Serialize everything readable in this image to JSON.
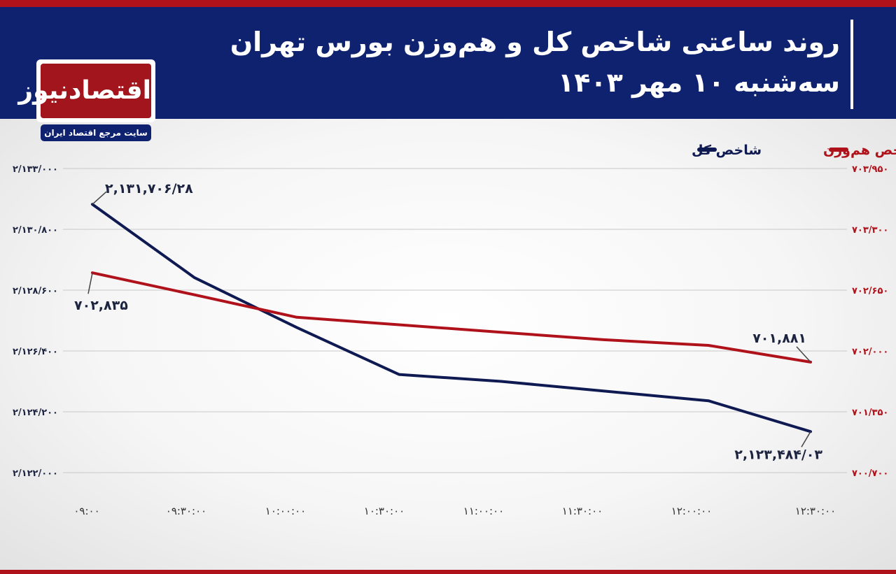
{
  "header": {
    "title_line1": "روند ساعتی شاخص کل و هم‌وزن بورس تهران",
    "title_line2": "سه‌شنبه ۱۰ مهر ۱۴۰۳"
  },
  "logo": {
    "name": "اقتصادنیوز",
    "tagline": "سایت مرجع اقتصاد ایران"
  },
  "colors": {
    "header_bg": "#0f2270",
    "accent_red": "#b0121b",
    "total_index": "#0f1a52",
    "equal_weight_index": "#b0121b"
  },
  "chart_data": {
    "type": "line",
    "x_categories": [
      "۰۹:۰۰",
      "۰۹:۳۰:۰۰",
      "۱۰:۰۰:۰۰",
      "۱۰:۳۰:۰۰",
      "۱۱:۰۰:۰۰",
      "۱۱:۳۰:۰۰",
      "۱۲:۰۰:۰۰",
      "۱۲:۳۰:۰۰"
    ],
    "y_left": {
      "min": 2122000,
      "max": 2133000,
      "tick_labels": [
        "۲/۱۳۳/۰۰۰",
        "۲/۱۳۰/۸۰۰",
        "۲/۱۲۸/۶۰۰",
        "۲/۱۲۶/۴۰۰",
        "۲/۱۲۴/۲۰۰",
        "۲/۱۲۲/۰۰۰"
      ]
    },
    "y_right": {
      "min": 700700,
      "max": 703950,
      "tick_labels": [
        "۷۰۳/۹۵۰",
        "۷۰۳/۳۰۰",
        "۷۰۲/۶۵۰",
        "۷۰۲/۰۰۰",
        "۷۰۱/۳۵۰",
        "۷۰۰/۷۰۰"
      ]
    },
    "grid": true,
    "legend_position": "top-right",
    "series": [
      {
        "name": "شاخص کل",
        "axis": "left",
        "color": "#0f1a52",
        "values": [
          2131706.28,
          2129050,
          2127250,
          2125550,
          2125300,
          2124950,
          2124600,
          2123484.03
        ],
        "start_label": "۲,۱۳۱,۷۰۶/۲۸",
        "end_label": "۲,۱۲۳,۴۸۴/۰۳"
      },
      {
        "name": "شاخص هم‌وزن",
        "axis": "right",
        "color": "#b0121b",
        "values": [
          702835,
          702600,
          702360,
          702280,
          702200,
          702120,
          702060,
          701881
        ],
        "start_label": "۷۰۲,۸۳۵",
        "end_label": "۷۰۱,۸۸۱"
      }
    ]
  }
}
